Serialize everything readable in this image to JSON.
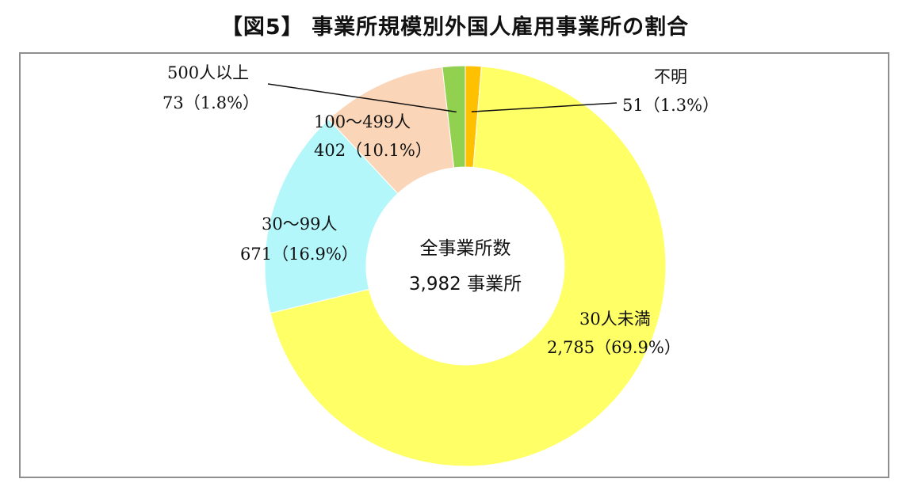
{
  "title": "【図5】 事業所規模別外国人雇用事業所の割合",
  "center": {
    "line1": "全事業所数",
    "line2": "3,982 事業所"
  },
  "colors": {
    "lt30": "#ffff66",
    "s30_99": "#b3f7fb",
    "s100_499": "#fbd5b7",
    "s500": "#92d050",
    "unknown": "#ffc000",
    "frame": "#8f8f8f"
  },
  "chart_data": {
    "type": "pie",
    "variant": "donut",
    "title": "【図5】 事業所規模別外国人雇用事業所の割合",
    "total_label": "3,982 事業所",
    "slices": [
      {
        "name": "不明",
        "value": 51,
        "percent": 1.3,
        "label_name": "不明",
        "label_value": "51（1.3%）"
      },
      {
        "name": "30人未満",
        "value": 2785,
        "percent": 69.9,
        "label_name": "30人未満",
        "label_value": "2,785（69.9%）"
      },
      {
        "name": "30～99人",
        "value": 671,
        "percent": 16.9,
        "label_name": "30～99人",
        "label_value": "671（16.9%）"
      },
      {
        "name": "100～499人",
        "value": 402,
        "percent": 10.1,
        "label_name": "100～499人",
        "label_value": "402（10.1%）"
      },
      {
        "name": "500人以上",
        "value": 73,
        "percent": 1.8,
        "label_name": "500人以上",
        "label_value": "73（1.8%）"
      }
    ]
  }
}
